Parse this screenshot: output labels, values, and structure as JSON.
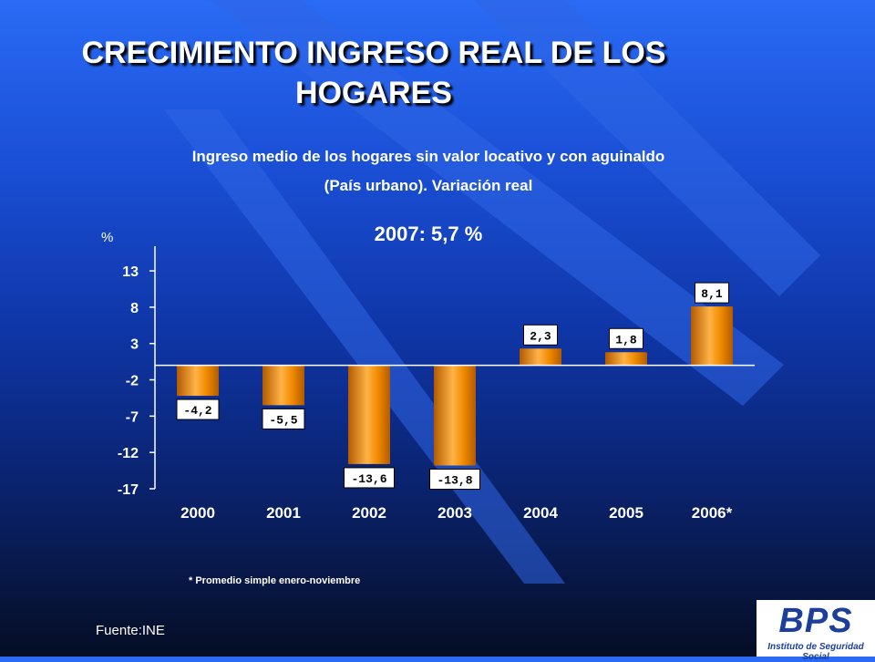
{
  "header": {
    "title_line1": "CRECIMIENTO INGRESO REAL DE LOS",
    "title_line2": "HOGARES",
    "subtitle_line1": "Ingreso medio de los hogares sin valor locativo y con aguinaldo",
    "subtitle_line2": "(País urbano). Variación real",
    "highlight": "2007: 5,7 %"
  },
  "footnote": "* Promedio simple enero-noviembre",
  "source": "Fuente:INE",
  "logo": {
    "name": "BPS",
    "subtitle": "Instituto de Seguridad Social"
  },
  "colors": {
    "bar": "#f28c00",
    "bar_light": "#ffb347",
    "bar_dark": "#b35a00",
    "text": "#ffffff",
    "logo_blue": "#1b3f9a"
  },
  "chart_data": {
    "type": "bar",
    "ylabel": "%",
    "categories": [
      "2000",
      "2001",
      "2002",
      "2003",
      "2004",
      "2005",
      "2006*"
    ],
    "values": [
      -4.2,
      -5.5,
      -13.6,
      -13.8,
      2.3,
      1.8,
      8.1
    ],
    "data_labels": [
      "-4,2",
      "-5,5",
      "-13,6",
      "-13,8",
      "2,3",
      "1,8",
      "8,1"
    ],
    "yticks": [
      13,
      8,
      3,
      -2,
      -7,
      -12,
      -17
    ],
    "ylim": [
      -17,
      16.4
    ],
    "grid": false,
    "legend": "none"
  }
}
